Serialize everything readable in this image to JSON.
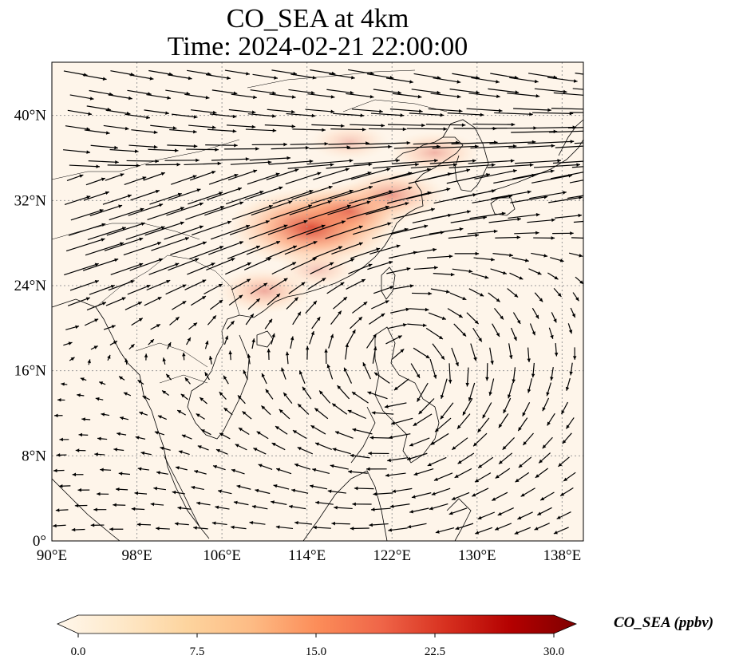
{
  "title": {
    "line1": "CO_SEA at 4km",
    "line2": "Time: 2024-02-21 22:00:00"
  },
  "map": {
    "lon_ticks": [
      "90°E",
      "98°E",
      "106°E",
      "114°E",
      "122°E",
      "130°E",
      "138°E"
    ],
    "lat_ticks": [
      "40°N",
      "32°N",
      "24°N",
      "16°N",
      "8°N",
      "0°"
    ],
    "lon_range": [
      90,
      140
    ],
    "lat_range": [
      0,
      45
    ],
    "gridlines": true,
    "colors": {
      "background": "#fef5ea",
      "land_outline": "#000000",
      "grid": "#999999",
      "arrow": "#000000"
    },
    "plumes": [
      {
        "lon": 114.5,
        "lat": 29.5,
        "value": 22
      },
      {
        "lon": 118,
        "lat": 31,
        "value": 14
      },
      {
        "lon": 122,
        "lat": 32.5,
        "value": 11
      },
      {
        "lon": 126,
        "lat": 36.5,
        "value": 8
      },
      {
        "lon": 118,
        "lat": 37.5,
        "value": 6
      },
      {
        "lon": 115,
        "lat": 25.5,
        "value": 6
      },
      {
        "lon": 110,
        "lat": 23.5,
        "value": 9
      }
    ]
  },
  "colorbar": {
    "label": "CO_SEA (ppbv)",
    "ticks": [
      "0.0",
      "7.5",
      "15.0",
      "22.5",
      "30.0"
    ],
    "range": [
      0,
      30
    ],
    "colormap": "OrRd",
    "stops": [
      "#fff7ec",
      "#fee8c8",
      "#fdd49e",
      "#fdbb84",
      "#fc8d59",
      "#ef6548",
      "#d7301f",
      "#b30000",
      "#7f0000"
    ]
  }
}
